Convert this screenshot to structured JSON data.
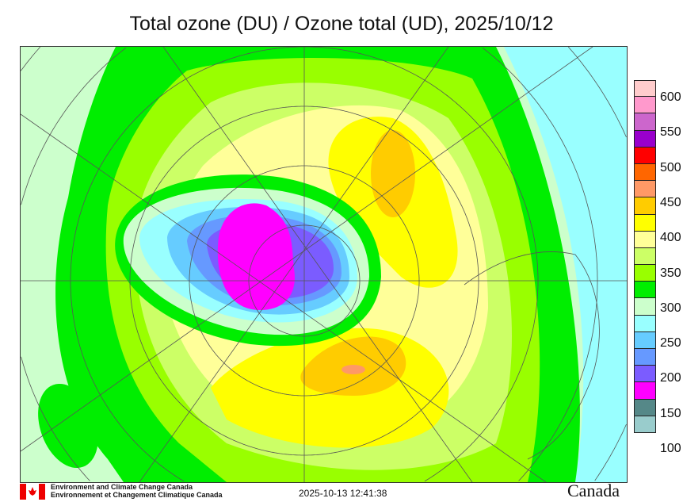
{
  "title": "Total ozone (DU) / Ozone total (UD), 2025/10/12",
  "colorbar": {
    "labels": [
      "600",
      "550",
      "500",
      "450",
      "400",
      "350",
      "300",
      "250",
      "200",
      "150",
      "100"
    ],
    "colors": [
      "#ffcccc",
      "#ff99cc",
      "#cc66cc",
      "#9900cc",
      "#ff0000",
      "#ff6600",
      "#ff9966",
      "#ffcc00",
      "#ffff00",
      "#ffff99",
      "#ccff66",
      "#99ff00",
      "#00ee00",
      "#ccffcc",
      "#99ffff",
      "#66ccff",
      "#6699ff",
      "#7b5cff",
      "#ff00ff",
      "#558888",
      "#99cccc"
    ]
  },
  "footer": {
    "org_en": "Environment and Climate Change Canada",
    "org_fr": "Environnement et Changement Climatique Canada",
    "timestamp": "2025-10-13 12:41:38",
    "wordmark": "Canada"
  }
}
